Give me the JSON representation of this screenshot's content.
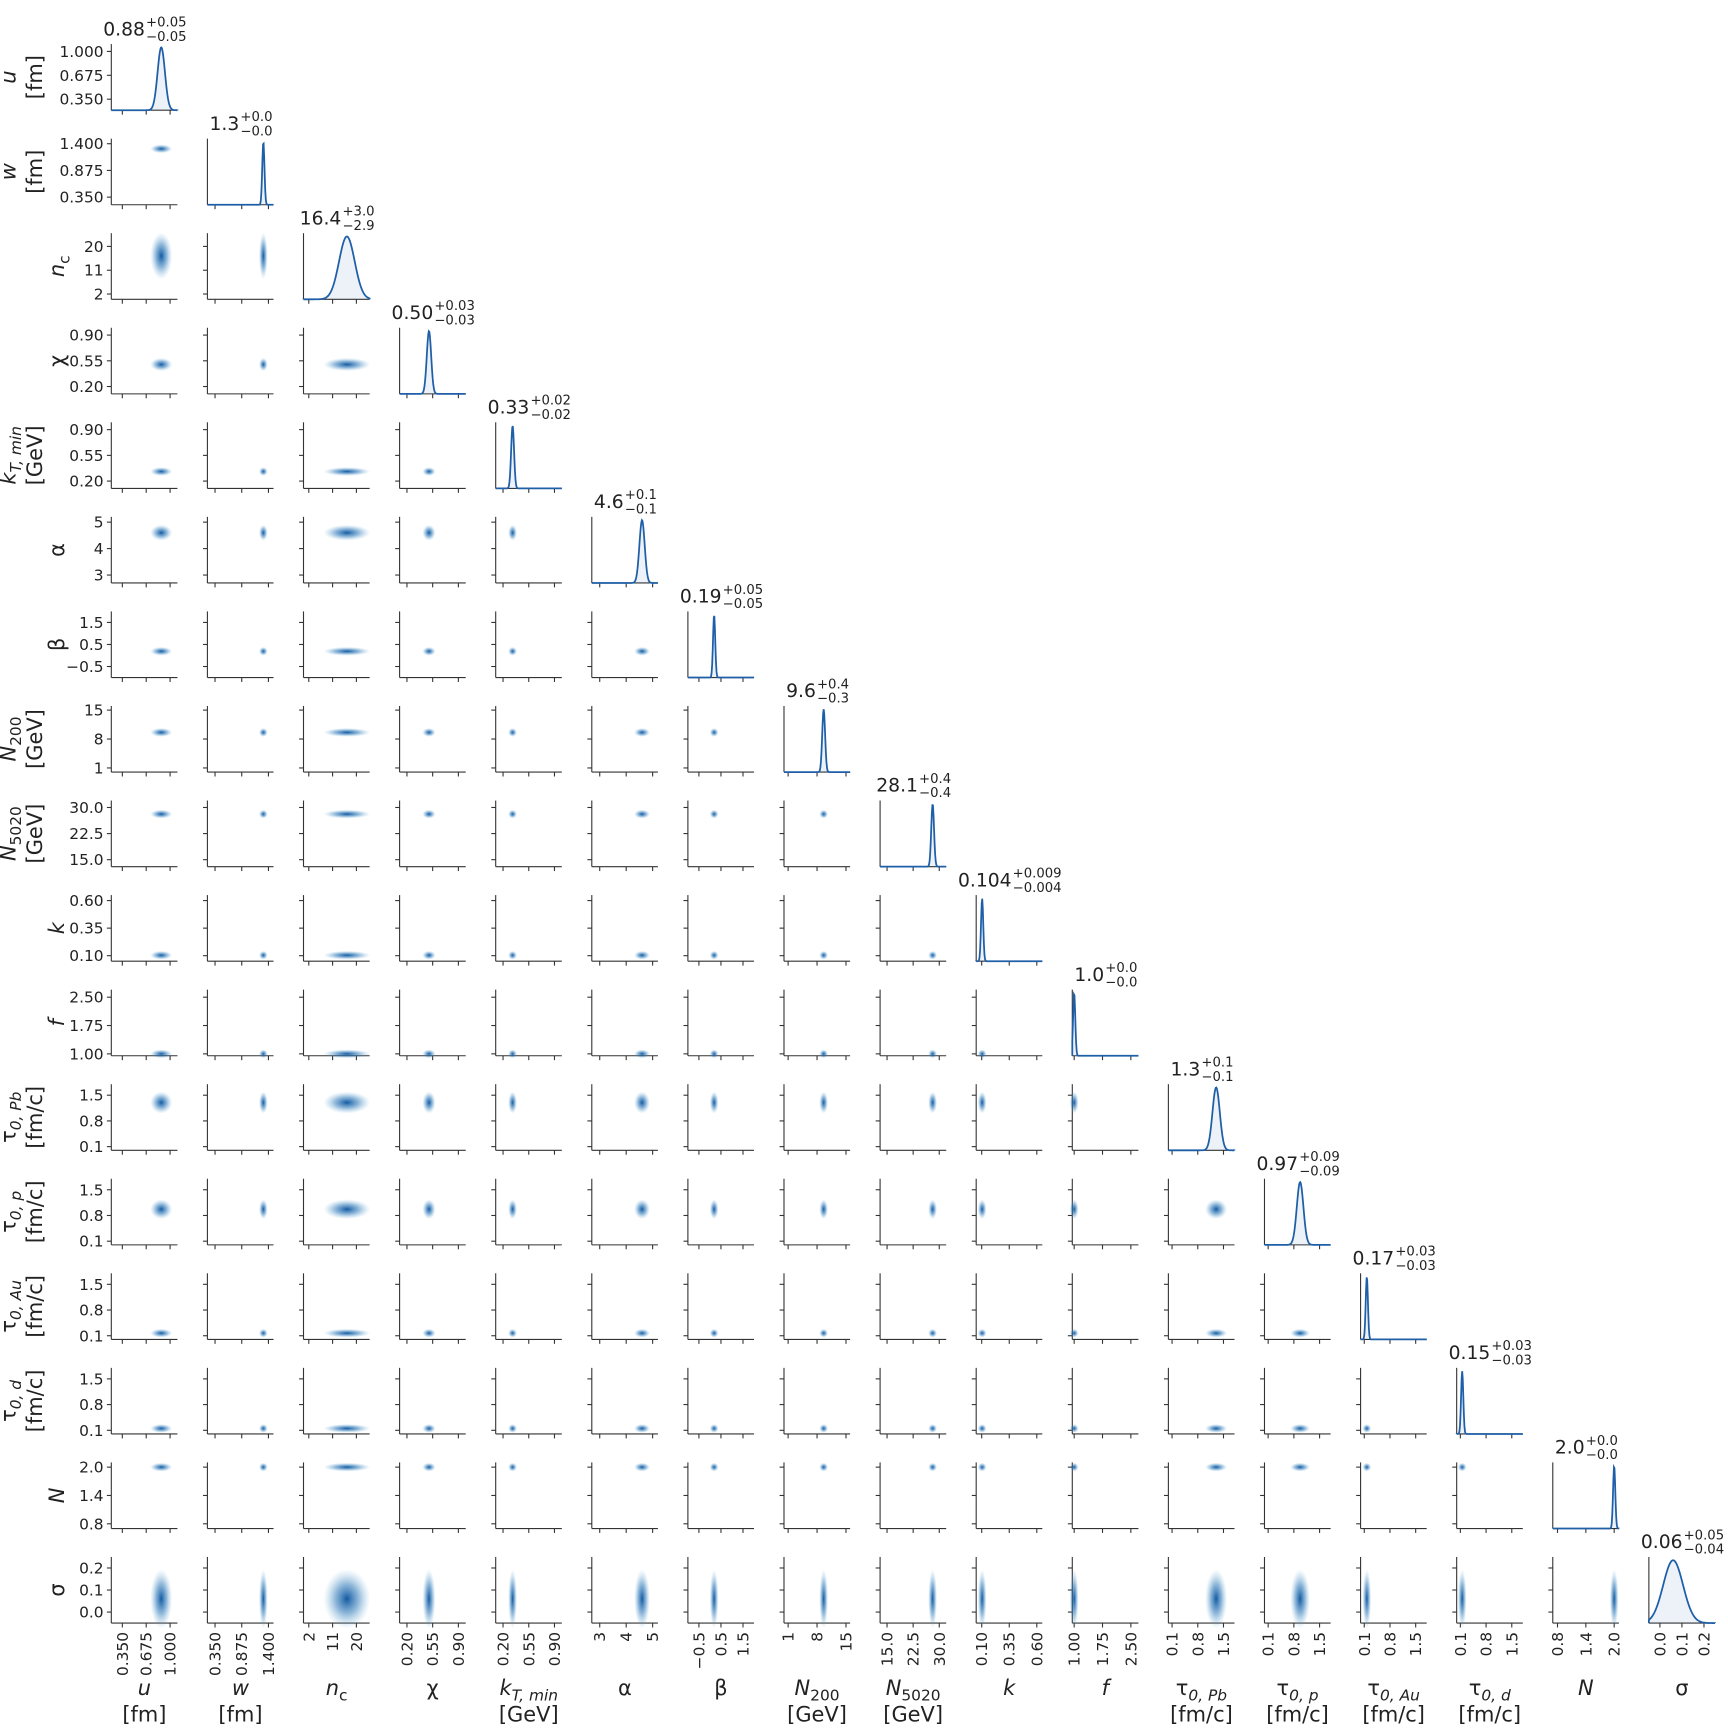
{
  "chart_data": {
    "type": "corner",
    "color": "#1f5fa8",
    "params": [
      {
        "symbol": "u",
        "unit": "[fm]",
        "lim": [
          0.2,
          1.1
        ],
        "ticks": [
          {
            "value": 0.35,
            "label": "0.350"
          },
          0.675,
          {
            "value": 1.0,
            "label": "1.000"
          }
        ],
        "estimate": {
          "value": 0.88,
          "label": "0.88"
        },
        "plus": {
          "value": 0.05,
          "label": "+0.05"
        },
        "minus": {
          "value": -0.05,
          "label": "−0.05"
        }
      },
      {
        "symbol": "w",
        "unit": "[fm]",
        "lim": [
          0.2,
          1.5
        ],
        "ticks": [
          {
            "value": 0.35,
            "label": "0.350"
          },
          0.875,
          {
            "value": 1.4,
            "label": "1.400"
          }
        ],
        "estimate": {
          "value": 1.3,
          "label": "1.3"
        },
        "plus": {
          "value": 0.0,
          "label": "+0.0"
        },
        "minus": {
          "value": -0.0,
          "label": "−0.0"
        }
      },
      {
        "symbol": "n",
        "subscript": "c",
        "lim": [
          0,
          25
        ],
        "ticks": [
          2,
          11,
          20
        ],
        "estimate": {
          "value": 16.4,
          "label": "16.4"
        },
        "plus": {
          "value": 3.0,
          "label": "+3.0"
        },
        "minus": {
          "value": -2.9,
          "label": "−2.9"
        }
      },
      {
        "symbol": "χ",
        "lim": [
          0.1,
          1.0
        ],
        "ticks": [
          {
            "value": 0.2,
            "label": "0.20"
          },
          0.55,
          {
            "value": 0.9,
            "label": "0.90"
          }
        ],
        "estimate": {
          "value": 0.5,
          "label": "0.50"
        },
        "plus": {
          "value": 0.03,
          "label": "+0.03"
        },
        "minus": {
          "value": -0.03,
          "label": "−0.03"
        }
      },
      {
        "symbol": "k",
        "subscript": "T, min",
        "unit": "[GeV]",
        "lim": [
          0.1,
          1.0
        ],
        "ticks": [
          {
            "value": 0.2,
            "label": "0.20"
          },
          0.55,
          {
            "value": 0.9,
            "label": "0.90"
          }
        ],
        "estimate": {
          "value": 0.33,
          "label": "0.33"
        },
        "plus": {
          "value": 0.02,
          "label": "+0.02"
        },
        "minus": {
          "value": -0.02,
          "label": "−0.02"
        }
      },
      {
        "symbol": "α",
        "lim": [
          2.7,
          5.2
        ],
        "ticks": [
          3,
          4,
          5
        ],
        "estimate": {
          "value": 4.6,
          "label": "4.6"
        },
        "plus": {
          "value": 0.1,
          "label": "+0.1"
        },
        "minus": {
          "value": -0.1,
          "label": "−0.1"
        }
      },
      {
        "symbol": "β",
        "lim": [
          -1,
          2
        ],
        "ticks": [
          {
            "value": -0.5,
            "label": "−0.5"
          },
          0.5,
          1.5
        ],
        "estimate": {
          "value": 0.19,
          "label": "0.19"
        },
        "plus": {
          "value": 0.05,
          "label": "+0.05"
        },
        "minus": {
          "value": -0.05,
          "label": "−0.05"
        }
      },
      {
        "symbol": "N",
        "subscript": "200",
        "unit": "[GeV]",
        "lim": [
          0,
          16
        ],
        "ticks": [
          1,
          8,
          15
        ],
        "estimate": {
          "value": 9.6,
          "label": "9.6"
        },
        "plus": {
          "value": 0.4,
          "label": "+0.4"
        },
        "minus": {
          "value": -0.3,
          "label": "−0.3"
        }
      },
      {
        "symbol": "N",
        "subscript": "5020",
        "unit": "[GeV]",
        "lim": [
          13,
          32
        ],
        "ticks": [
          {
            "value": 15,
            "label": "15.0"
          },
          22.5,
          {
            "value": 30,
            "label": "30.0"
          }
        ],
        "estimate": {
          "value": 28.1,
          "label": "28.1"
        },
        "plus": {
          "value": 0.4,
          "label": "+0.4"
        },
        "minus": {
          "value": -0.4,
          "label": "−0.4"
        }
      },
      {
        "symbol": "k",
        "lim": [
          0.05,
          0.65
        ],
        "ticks": [
          {
            "value": 0.1,
            "label": "0.10"
          },
          0.35,
          {
            "value": 0.6,
            "label": "0.60"
          }
        ],
        "estimate": {
          "value": 0.104,
          "label": "0.104"
        },
        "plus": {
          "value": 0.009,
          "label": "+0.009"
        },
        "minus": {
          "value": -0.004,
          "label": "−0.004"
        }
      },
      {
        "symbol": "f",
        "lim": [
          0.95,
          2.7
        ],
        "ticks": [
          {
            "value": 1,
            "label": "1.00"
          },
          1.75,
          {
            "value": 2.5,
            "label": "2.50"
          }
        ],
        "estimate": {
          "value": 1.0,
          "label": "1.0"
        },
        "plus": {
          "value": 0.0,
          "label": "+0.0"
        },
        "minus": {
          "value": -0.0,
          "label": "−0.0"
        }
      },
      {
        "symbol": "τ",
        "subscript": "0, Pb",
        "unit": "[fm/c]",
        "lim": [
          0,
          1.8
        ],
        "ticks": [
          0.1,
          0.8,
          1.5
        ],
        "estimate": {
          "value": 1.3,
          "label": "1.3"
        },
        "plus": {
          "value": 0.1,
          "label": "+0.1"
        },
        "minus": {
          "value": -0.1,
          "label": "−0.1"
        }
      },
      {
        "symbol": "τ",
        "subscript": "0, p",
        "unit": "[fm/c]",
        "lim": [
          0,
          1.8
        ],
        "ticks": [
          0.1,
          0.8,
          1.5
        ],
        "estimate": {
          "value": 0.97,
          "label": "0.97"
        },
        "plus": {
          "value": 0.09,
          "label": "+0.09"
        },
        "minus": {
          "value": -0.09,
          "label": "−0.09"
        }
      },
      {
        "symbol": "τ",
        "subscript": "0, Au",
        "unit": "[fm/c]",
        "lim": [
          0,
          1.8
        ],
        "ticks": [
          0.1,
          0.8,
          1.5
        ],
        "estimate": {
          "value": 0.17,
          "label": "0.17"
        },
        "plus": {
          "value": 0.03,
          "label": "+0.03"
        },
        "minus": {
          "value": -0.03,
          "label": "−0.03"
        }
      },
      {
        "symbol": "τ",
        "subscript": "0, d",
        "unit": "[fm/c]",
        "lim": [
          0,
          1.8
        ],
        "ticks": [
          0.1,
          0.8,
          1.5
        ],
        "estimate": {
          "value": 0.15,
          "label": "0.15"
        },
        "plus": {
          "value": 0.03,
          "label": "+0.03"
        },
        "minus": {
          "value": -0.03,
          "label": "−0.03"
        }
      },
      {
        "symbol": "N",
        "lim": [
          0.7,
          2.1
        ],
        "ticks": [
          0.8,
          1.4,
          {
            "value": 2,
            "label": "2.0"
          }
        ],
        "estimate": {
          "value": 2.0,
          "label": "2.0"
        },
        "plus": {
          "value": 0.0,
          "label": "+0.0"
        },
        "minus": {
          "value": -0.0,
          "label": "−0.0"
        }
      },
      {
        "symbol": "σ",
        "lim": [
          -0.05,
          0.25
        ],
        "ticks": [
          {
            "value": 0,
            "label": "0.0"
          },
          0.1,
          0.2
        ],
        "estimate": {
          "value": 0.06,
          "label": "0.06"
        },
        "plus": {
          "value": 0.05,
          "label": "+0.05"
        },
        "minus": {
          "value": -0.04,
          "label": "−0.04"
        }
      }
    ]
  }
}
